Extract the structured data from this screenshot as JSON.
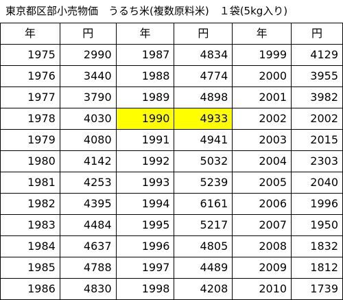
{
  "title": "東京都区部小売物価　うるち米(複数原料米)　１袋(5kg入り)",
  "headers": [
    "年",
    "円",
    "年",
    "円",
    "年",
    "円"
  ],
  "highlight_color": "#ffff00",
  "rows": [
    [
      "1975",
      "2990",
      "1987",
      "4834",
      "1999",
      "4129"
    ],
    [
      "1976",
      "3440",
      "1988",
      "4774",
      "2000",
      "3955"
    ],
    [
      "1977",
      "3790",
      "1989",
      "4898",
      "2001",
      "3982"
    ],
    [
      "1978",
      "4030",
      "1990",
      "4933",
      "2002",
      "2002"
    ],
    [
      "1979",
      "4080",
      "1991",
      "4941",
      "2003",
      "2015"
    ],
    [
      "1980",
      "4142",
      "1992",
      "5032",
      "2004",
      "2303"
    ],
    [
      "1981",
      "4253",
      "1993",
      "5239",
      "2005",
      "2040"
    ],
    [
      "1982",
      "4395",
      "1994",
      "6161",
      "2006",
      "1996"
    ],
    [
      "1983",
      "4484",
      "1995",
      "5217",
      "2007",
      "1950"
    ],
    [
      "1984",
      "4637",
      "1996",
      "4805",
      "2008",
      "1832"
    ],
    [
      "1985",
      "4788",
      "1997",
      "4489",
      "2009",
      "1812"
    ],
    [
      "1986",
      "4830",
      "1998",
      "4208",
      "2010",
      "1739"
    ]
  ]
}
